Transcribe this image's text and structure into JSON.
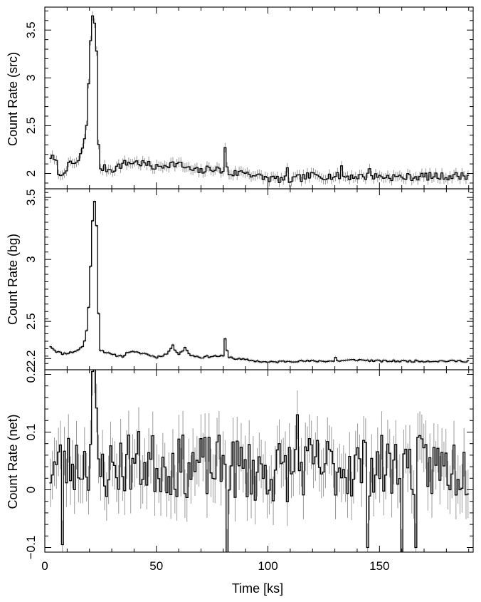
{
  "chart_data": [
    {
      "type": "line",
      "style": "step histogram with vertical error bars",
      "ylabel": "Count Rate (src)",
      "xlabel": "",
      "xlim": [
        0,
        192
      ],
      "ylim": [
        1.84,
        3.74
      ],
      "yticks": [
        2,
        2.5,
        3,
        3.5
      ],
      "ytick_labels": [
        "2",
        "2.5",
        "3",
        "3.5"
      ],
      "xticks": [
        0,
        50,
        100,
        150
      ],
      "show_xtick_labels": false,
      "errbar": 0.05,
      "bin_width": 0.9,
      "x_start": 2.5,
      "y_knots": [
        [
          2.5,
          2.18
        ],
        [
          5,
          2.12
        ],
        [
          7,
          1.95
        ],
        [
          9,
          2.05
        ],
        [
          12,
          2.1
        ],
        [
          15,
          2.12
        ],
        [
          17,
          2.25
        ],
        [
          19,
          2.55
        ],
        [
          20,
          3.15
        ],
        [
          21,
          3.65
        ],
        [
          22,
          3.65
        ],
        [
          23,
          3.5
        ],
        [
          24,
          2.3
        ],
        [
          25,
          2.06
        ],
        [
          30,
          2.04
        ],
        [
          35,
          2.1
        ],
        [
          40,
          2.12
        ],
        [
          45,
          2.1
        ],
        [
          50,
          2.06
        ],
        [
          55,
          2.1
        ],
        [
          60,
          2.1
        ],
        [
          65,
          2.04
        ],
        [
          70,
          2.02
        ],
        [
          75,
          2.06
        ],
        [
          80,
          2.02
        ],
        [
          81,
          2.25
        ],
        [
          82,
          2.0
        ],
        [
          85,
          2.0
        ],
        [
          90,
          2.02
        ],
        [
          95,
          1.97
        ],
        [
          100,
          1.95
        ],
        [
          110,
          1.93
        ],
        [
          120,
          1.98
        ],
        [
          130,
          1.97
        ],
        [
          140,
          1.97
        ],
        [
          150,
          1.97
        ],
        [
          160,
          1.96
        ],
        [
          170,
          1.97
        ],
        [
          180,
          1.97
        ],
        [
          190,
          1.98
        ]
      ],
      "y_noise": 0.04,
      "spikes": [
        [
          81,
          2.27
        ],
        [
          109,
          2.06
        ],
        [
          133,
          2.08
        ],
        [
          146,
          2.05
        ]
      ],
      "seed": 7
    },
    {
      "type": "line",
      "style": "step histogram with vertical error bars",
      "ylabel": "Count Rate (bg)",
      "xlabel": "",
      "xlim": [
        0,
        192
      ],
      "ylim": [
        2.11,
        3.57
      ],
      "yticks": [
        2.2,
        2.5,
        3,
        3.5
      ],
      "ytick_labels": [
        "2.2",
        "2.5",
        "3",
        "3.5"
      ],
      "xticks": [
        0,
        50,
        100,
        150
      ],
      "show_xtick_labels": false,
      "errbar": 0.012,
      "bin_width": 0.9,
      "x_start": 2.5,
      "y_knots": [
        [
          2.5,
          2.3
        ],
        [
          5,
          2.26
        ],
        [
          8,
          2.24
        ],
        [
          12,
          2.25
        ],
        [
          15,
          2.27
        ],
        [
          17,
          2.3
        ],
        [
          18.5,
          2.38
        ],
        [
          20,
          2.7
        ],
        [
          21,
          3.2
        ],
        [
          22,
          3.47
        ],
        [
          23,
          3.45
        ],
        [
          24,
          2.6
        ],
        [
          25,
          2.27
        ],
        [
          30,
          2.23
        ],
        [
          35,
          2.22
        ],
        [
          38,
          2.26
        ],
        [
          40,
          2.25
        ],
        [
          45,
          2.24
        ],
        [
          50,
          2.21
        ],
        [
          55,
          2.24
        ],
        [
          57,
          2.3
        ],
        [
          60,
          2.24
        ],
        [
          63,
          2.28
        ],
        [
          65,
          2.23
        ],
        [
          70,
          2.21
        ],
        [
          75,
          2.22
        ],
        [
          80,
          2.22
        ],
        [
          81,
          2.35
        ],
        [
          82,
          2.22
        ],
        [
          85,
          2.2
        ],
        [
          90,
          2.19
        ],
        [
          95,
          2.18
        ],
        [
          100,
          2.17
        ],
        [
          110,
          2.18
        ],
        [
          120,
          2.18
        ],
        [
          130,
          2.18
        ],
        [
          140,
          2.19
        ],
        [
          150,
          2.18
        ],
        [
          160,
          2.18
        ],
        [
          170,
          2.18
        ],
        [
          180,
          2.18
        ],
        [
          190,
          2.18
        ]
      ],
      "y_noise": 0.008,
      "spikes": [
        [
          57,
          2.31
        ],
        [
          63,
          2.29
        ],
        [
          81,
          2.36
        ],
        [
          130,
          2.21
        ]
      ],
      "seed": 11
    },
    {
      "type": "line",
      "style": "step histogram with vertical error bars",
      "ylabel": "Count Rate (net)",
      "xlabel": "Time [ks]",
      "xlim": [
        0,
        192
      ],
      "ylim": [
        -0.108,
        0.208
      ],
      "yticks": [
        -0.1,
        0,
        0.1,
        0.2
      ],
      "ytick_labels": [
        "−0.1",
        "0",
        "0.1",
        "0.2"
      ],
      "xticks": [
        0,
        50,
        100,
        150
      ],
      "xtick_labels": [
        "0",
        "50",
        "100",
        "150"
      ],
      "show_xtick_labels": true,
      "errbar": 0.042,
      "bin_width": 0.9,
      "x_start": 2.5,
      "y_knots": [
        [
          2.5,
          0.04
        ],
        [
          20,
          0.05
        ],
        [
          22,
          0.2
        ],
        [
          24,
          0.03
        ],
        [
          40,
          0.05
        ],
        [
          60,
          0.04
        ],
        [
          80,
          0.04
        ],
        [
          100,
          0.03
        ],
        [
          120,
          0.04
        ],
        [
          140,
          0.04
        ],
        [
          160,
          0.04
        ],
        [
          180,
          0.04
        ],
        [
          190,
          0.04
        ]
      ],
      "y_noise": 0.055,
      "spikes": [
        [
          21.5,
          0.205
        ],
        [
          8,
          -0.095
        ],
        [
          82,
          -0.11
        ],
        [
          113,
          0.13
        ],
        [
          145,
          -0.1
        ],
        [
          160,
          -0.11
        ],
        [
          166,
          -0.1
        ]
      ],
      "seed": 23
    }
  ]
}
